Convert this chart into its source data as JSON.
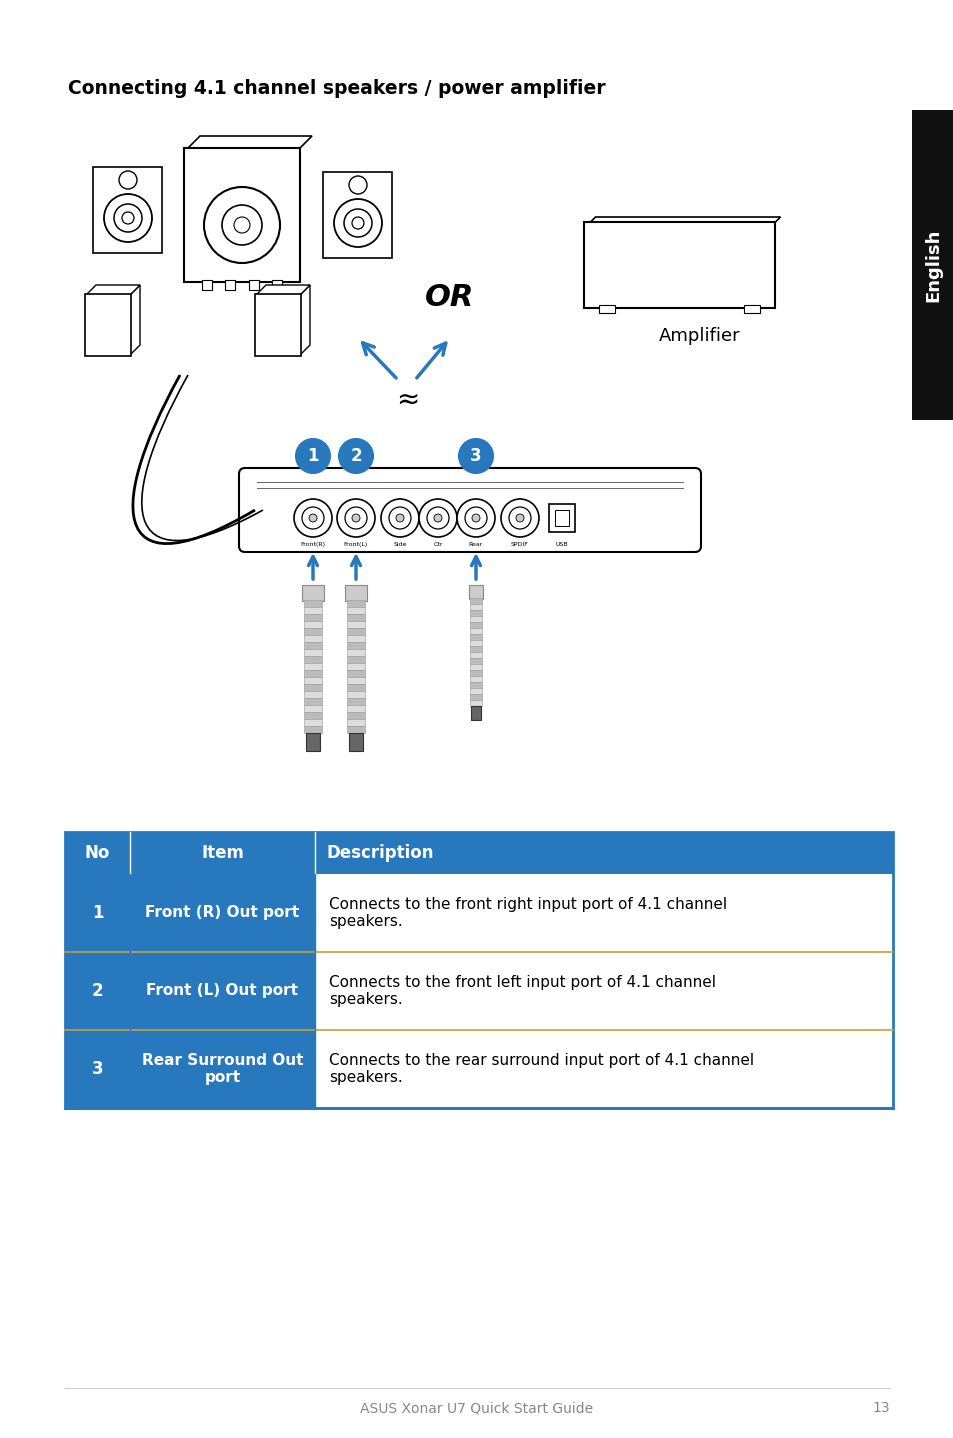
{
  "title": "Connecting 4.1 channel speakers / power amplifier",
  "header_bg": "#2878be",
  "header_text_color": "#ffffff",
  "col_no_label": "No",
  "col_item_label": "Item",
  "col_desc_label": "Description",
  "table_rows": [
    {
      "no": "1",
      "item": "Front (R) Out port",
      "description": "Connects to the front right input port of 4.1 channel\nspeakers."
    },
    {
      "no": "2",
      "item": "Front (L) Out port",
      "description": "Connects to the front left input port of 4.1 channel\nspeakers."
    },
    {
      "no": "3",
      "item": "Rear Surround Out\nport",
      "description": "Connects to the rear surround input port of 4.1 channel\nspeakers."
    }
  ],
  "footer_text": "ASUS Xonar U7 Quick Start Guide",
  "page_number": "13",
  "tab_label": "English",
  "tab_bg": "#111111",
  "or_text": "OR",
  "amplifier_text": "Amplifier",
  "circle_color": "#2878be",
  "circle_text_color": "#ffffff",
  "arrow_color": "#2878be",
  "background_color": "#ffffff",
  "port_labels": [
    "Front(R)",
    "Front(L)",
    "Side",
    "Ctr",
    "Rear",
    "SPDIF",
    "USB"
  ],
  "sep_color": "#c8a030"
}
